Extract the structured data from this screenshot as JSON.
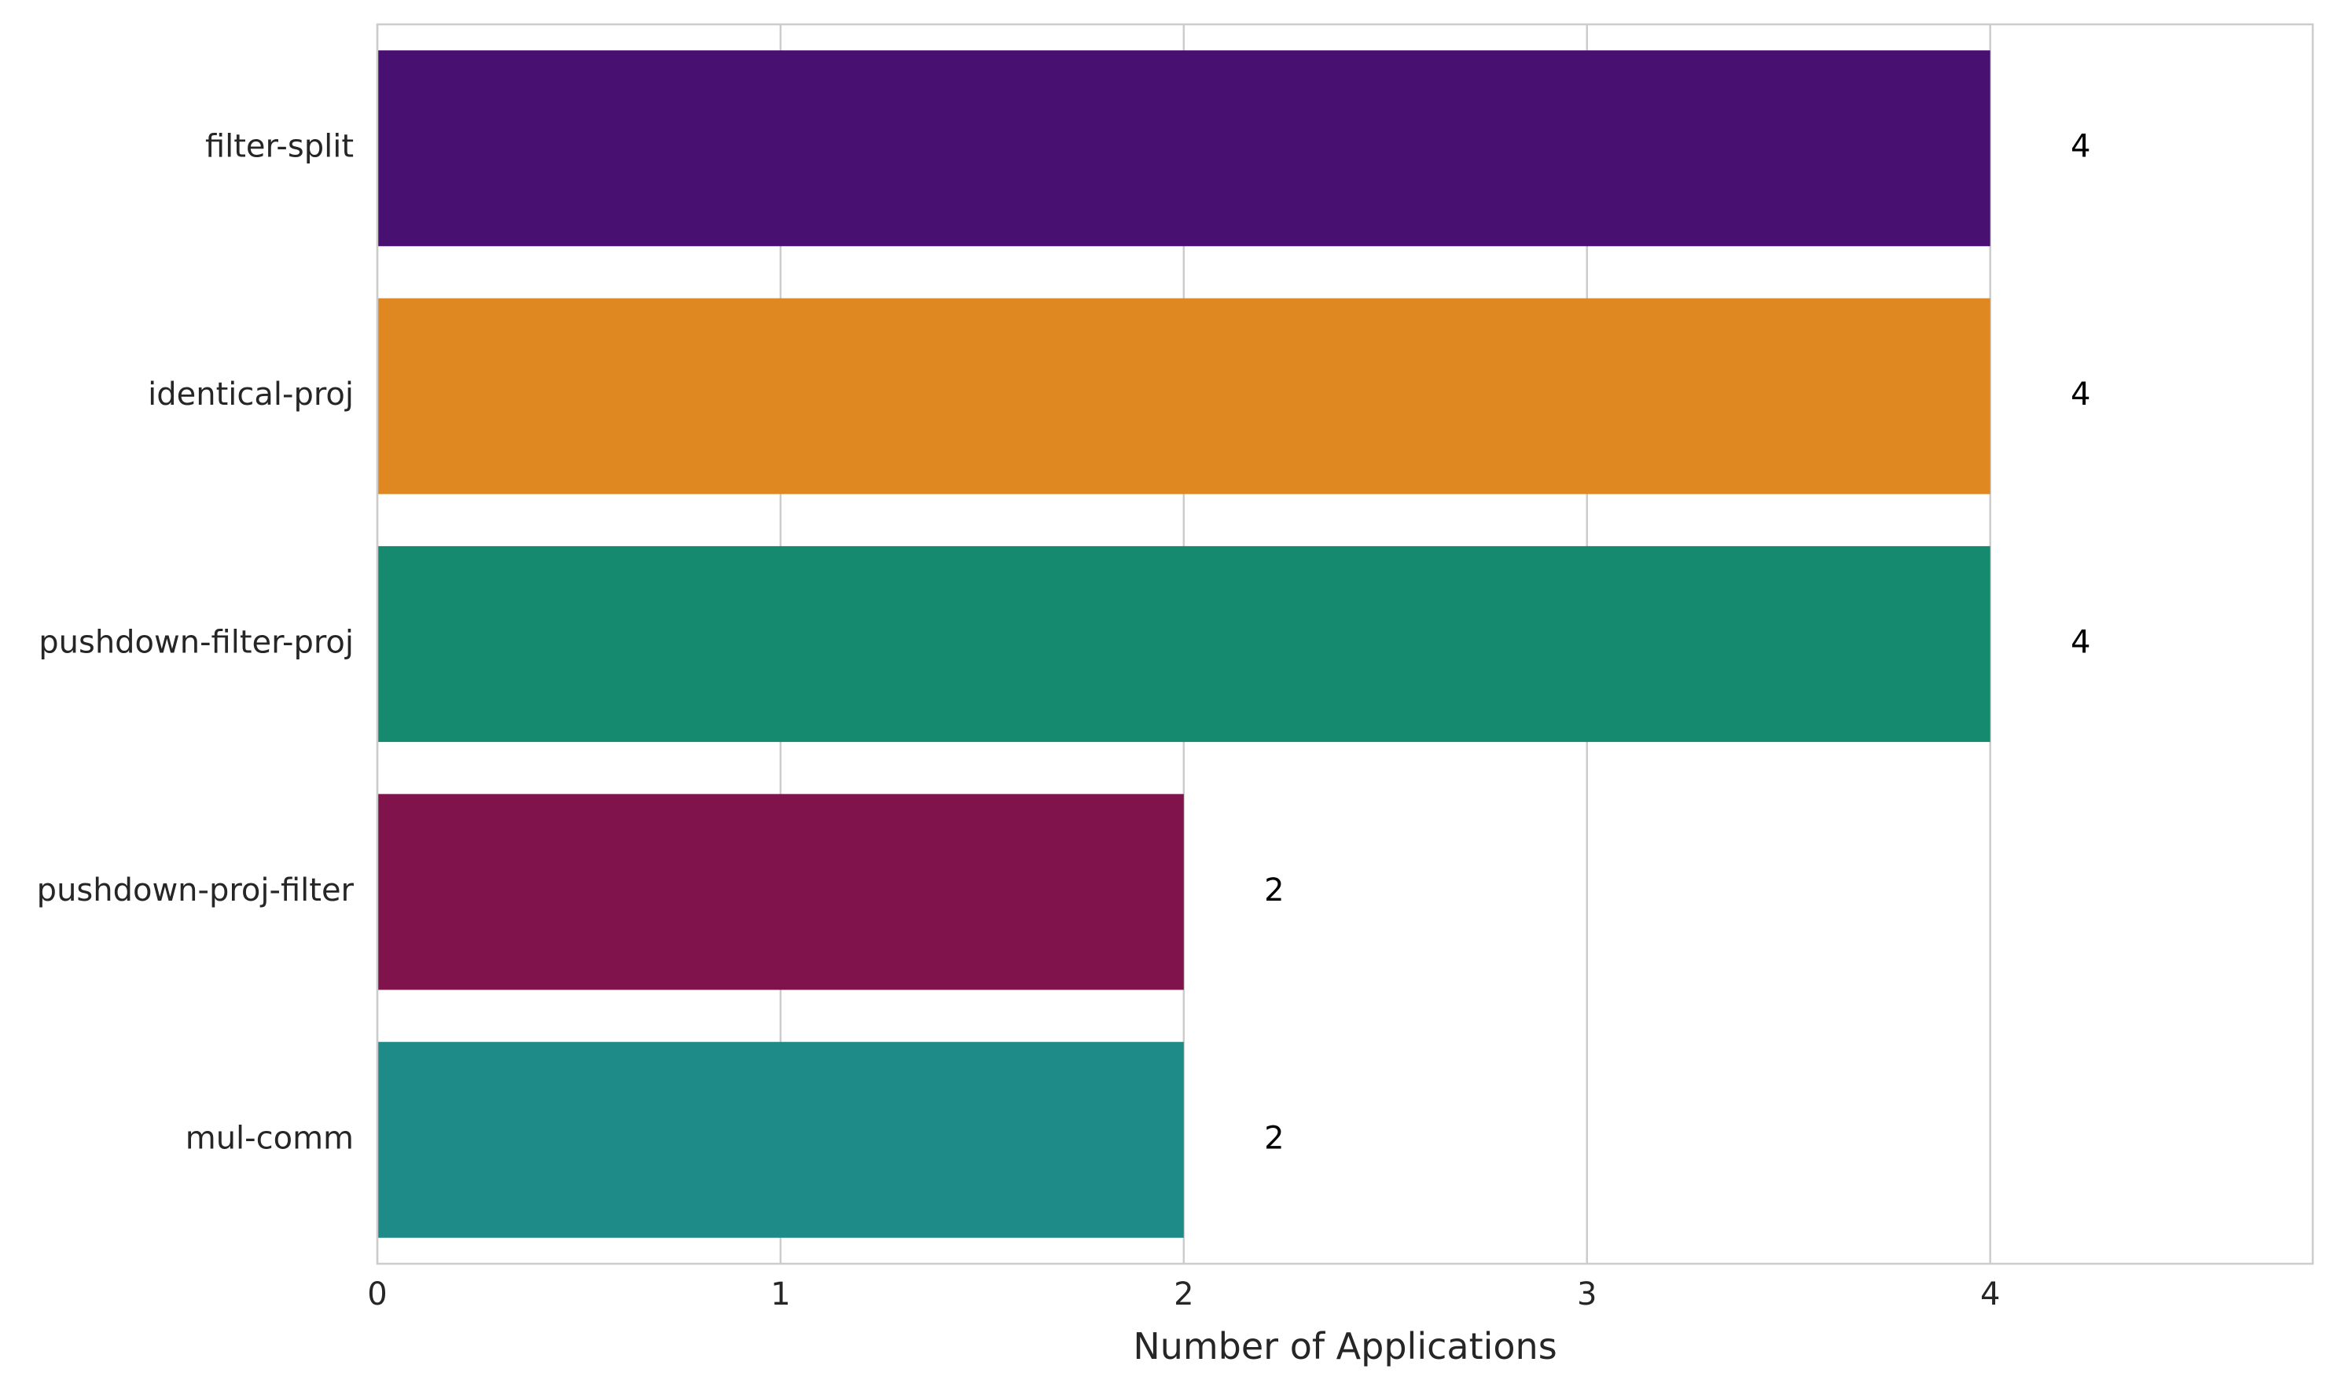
{
  "chart_data": {
    "type": "bar",
    "orientation": "horizontal",
    "categories": [
      "filter-split",
      "identical-proj",
      "pushdown-filter-proj",
      "pushdown-proj-filter",
      "mul-comm"
    ],
    "values": [
      4,
      4,
      4,
      2,
      2
    ],
    "value_labels": [
      "4",
      "4",
      "4",
      "2",
      "2"
    ],
    "colors": [
      "#481070",
      "#df8821",
      "#168a6e",
      "#80134c",
      "#1e8b89"
    ],
    "title": "",
    "xlabel": "Number of Applications",
    "ylabel": "",
    "xlim": [
      0,
      4.8
    ],
    "xticks": [
      0,
      1,
      2,
      3,
      4
    ],
    "xtick_labels": [
      "0",
      "1",
      "2",
      "3",
      "4"
    ],
    "grid": true,
    "legend": "none"
  }
}
